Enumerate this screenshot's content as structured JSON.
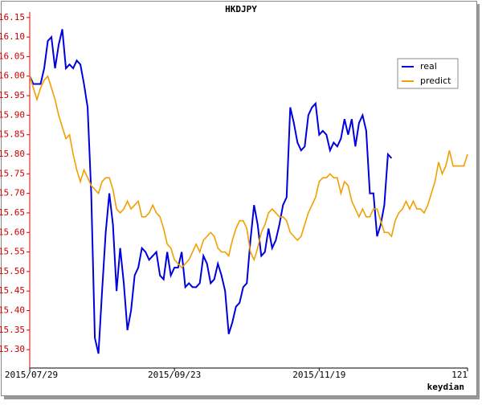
{
  "chart_data": {
    "type": "line",
    "title": "HKDJPY",
    "footer": "keydian",
    "legend": "upper right",
    "x": [
      0,
      1,
      2,
      3,
      4,
      5,
      6,
      7,
      8,
      9,
      10,
      11,
      12,
      13,
      14,
      15,
      16,
      17,
      18,
      19,
      20,
      21,
      22,
      23,
      24,
      25,
      26,
      27,
      28,
      29,
      30,
      31,
      32,
      33,
      34,
      35,
      36,
      37,
      38,
      39,
      40,
      41,
      42,
      43,
      44,
      45,
      46,
      47,
      48,
      49,
      50,
      51,
      52,
      53,
      54,
      55,
      56,
      57,
      58,
      59,
      60,
      61,
      62,
      63,
      64,
      65,
      66,
      67,
      68,
      69,
      70,
      71,
      72,
      73,
      74,
      75,
      76,
      77,
      78,
      79,
      80,
      81,
      82,
      83,
      84,
      85,
      86,
      87,
      88,
      89,
      90,
      91,
      92,
      93,
      94,
      95,
      96,
      97,
      98,
      99,
      100,
      101,
      102,
      103,
      104,
      105,
      106,
      107,
      108,
      109,
      110,
      111,
      112,
      113,
      114,
      115,
      116,
      117,
      118,
      119,
      120,
      121
    ],
    "xlim": [
      0,
      121
    ],
    "xticks": [
      {
        "value": 0,
        "label": "2015/07/29"
      },
      {
        "value": 40,
        "label": "2015/09/23"
      },
      {
        "value": 80,
        "label": "2015/11/19"
      },
      121
    ],
    "ylim": [
      15.253,
      16.164
    ],
    "yticks": [
      {
        "value": 15.3,
        "label": "15.30"
      },
      15.35,
      {
        "value": 15.4,
        "label": "15.40"
      },
      15.45,
      {
        "value": 15.5,
        "label": "15.50"
      },
      15.55,
      {
        "value": 15.6,
        "label": "15.60"
      },
      15.65,
      {
        "value": 15.7,
        "label": "15.70"
      },
      15.75,
      {
        "value": 15.8,
        "label": "15.80"
      },
      15.85,
      {
        "value": 15.9,
        "label": "15.90"
      },
      15.95,
      {
        "value": 16.0,
        "label": "16.00"
      },
      16.05,
      {
        "value": 16.1,
        "label": "16.10"
      },
      16.15
    ],
    "series": [
      {
        "name": "real",
        "color": "#0000dd",
        "values": [
          16.0,
          15.98,
          15.98,
          15.98,
          16.02,
          16.09,
          16.1,
          16.02,
          16.08,
          16.12,
          16.02,
          16.03,
          16.02,
          16.04,
          16.03,
          15.98,
          15.92,
          15.7,
          15.33,
          15.29,
          15.45,
          15.6,
          15.7,
          15.62,
          15.45,
          15.56,
          15.47,
          15.35,
          15.4,
          15.49,
          15.51,
          15.56,
          15.55,
          15.53,
          15.54,
          15.55,
          15.49,
          15.48,
          15.55,
          15.49,
          15.51,
          15.51,
          15.55,
          15.46,
          15.47,
          15.46,
          15.46,
          15.47,
          15.54,
          15.52,
          15.47,
          15.48,
          15.52,
          15.49,
          15.45,
          15.34,
          15.37,
          15.41,
          15.42,
          15.46,
          15.47,
          15.58,
          15.67,
          15.62,
          15.54,
          15.55,
          15.61,
          15.56,
          15.58,
          15.62,
          15.67,
          15.69,
          15.92,
          15.88,
          15.83,
          15.81,
          15.82,
          15.9,
          15.92,
          15.93,
          15.85,
          15.86,
          15.85,
          15.81,
          15.83,
          15.82,
          15.84,
          15.89,
          15.85,
          15.89,
          15.82,
          15.88,
          15.9,
          15.86,
          15.7,
          15.7,
          15.59,
          15.62,
          15.67,
          15.8,
          15.79,
          null,
          null,
          null,
          null,
          null,
          null,
          null,
          null,
          null,
          null,
          null,
          null,
          null,
          null,
          null,
          null,
          null,
          null,
          null,
          null,
          null
        ]
      },
      {
        "name": "predict",
        "color": "#f0a000",
        "values": [
          16.0,
          15.97,
          15.94,
          15.97,
          15.99,
          16.0,
          15.97,
          15.94,
          15.9,
          15.87,
          15.84,
          15.85,
          15.8,
          15.76,
          15.73,
          15.76,
          15.74,
          15.72,
          15.71,
          15.7,
          15.73,
          15.74,
          15.74,
          15.71,
          15.66,
          15.65,
          15.66,
          15.68,
          15.66,
          15.67,
          15.68,
          15.64,
          15.64,
          15.65,
          15.67,
          15.65,
          15.64,
          15.61,
          15.57,
          15.56,
          15.53,
          15.52,
          15.51,
          15.52,
          15.53,
          15.55,
          15.57,
          15.55,
          15.58,
          15.59,
          15.6,
          15.59,
          15.56,
          15.55,
          15.55,
          15.54,
          15.58,
          15.61,
          15.63,
          15.63,
          15.61,
          15.55,
          15.53,
          15.56,
          15.6,
          15.62,
          15.65,
          15.66,
          15.65,
          15.64,
          15.64,
          15.63,
          15.6,
          15.59,
          15.58,
          15.59,
          15.62,
          15.65,
          15.67,
          15.69,
          15.73,
          15.74,
          15.74,
          15.75,
          15.74,
          15.74,
          15.7,
          15.73,
          15.72,
          15.68,
          15.66,
          15.64,
          15.66,
          15.64,
          15.64,
          15.66,
          15.66,
          15.63,
          15.6,
          15.6,
          15.59,
          15.63,
          15.65,
          15.66,
          15.68,
          15.66,
          15.68,
          15.66,
          15.66,
          15.65,
          15.67,
          15.7,
          15.73,
          15.78,
          15.75,
          15.77,
          15.81,
          15.77,
          15.77,
          15.77,
          15.77,
          15.8
        ]
      }
    ]
  }
}
